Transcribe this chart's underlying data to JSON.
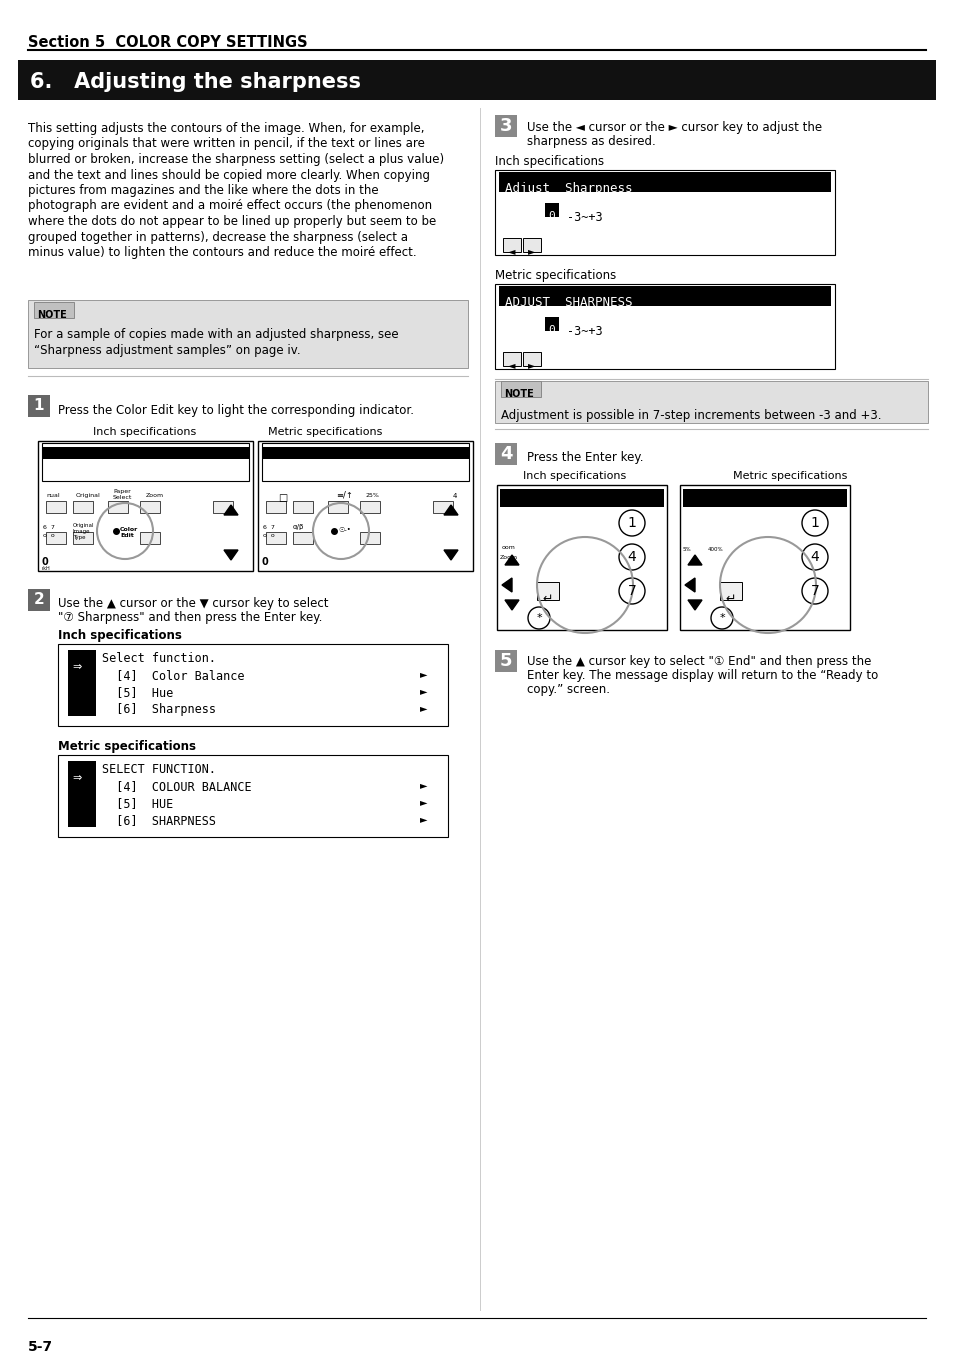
{
  "page_bg": "#ffffff",
  "section_title": "Section 5  COLOR COPY SETTINGS",
  "heading": "6.   Adjusting the sharpness",
  "intro_lines": [
    "This setting adjusts the contours of the image. When, for example,",
    "copying originals that were written in pencil, if the text or lines are",
    "blurred or broken, increase the sharpness setting (select a plus value)",
    "and the text and lines should be copied more clearly. When copying",
    "pictures from magazines and the like where the dots in the",
    "photograph are evident and a moiré effect occurs (the phenomenon",
    "where the dots do not appear to be lined up properly but seem to be",
    "grouped together in patterns), decrease the sharpness (select a",
    "minus value) to lighten the contours and reduce the moiré effect."
  ],
  "note1_lines": [
    "For a sample of copies made with an adjusted sharpness, see",
    "“Sharpness adjustment samples” on page iv."
  ],
  "step1_text": "Press the Color Edit key to light the corresponding indicator.",
  "step2_line1": "Use the ▲ cursor or the ▼ cursor key to select",
  "step2_line2": "\"⑦ Sharpness\" and then press the Enter key.",
  "step3_line1": "Use the ◄ cursor or the ► cursor key to adjust the",
  "step3_line2": "sharpness as desired.",
  "step4_text": "Press the Enter key.",
  "step5_line1": "Use the ▲ cursor key to select \"① End\" and then press the",
  "step5_line2": "Enter key. The message display will return to the “Ready to",
  "step5_line3": "copy.” screen.",
  "note2_text": "Adjustment is possible in 7-step increments between -3 and +3.",
  "inch_spec": "Inch specifications",
  "metric_spec": "Metric specifications",
  "adjust_sharp_inch_title": "Adjust  Sharpness",
  "adjust_sharp_metric_title": "ADJUST  SHARPNESS",
  "footer_text": "5-7"
}
